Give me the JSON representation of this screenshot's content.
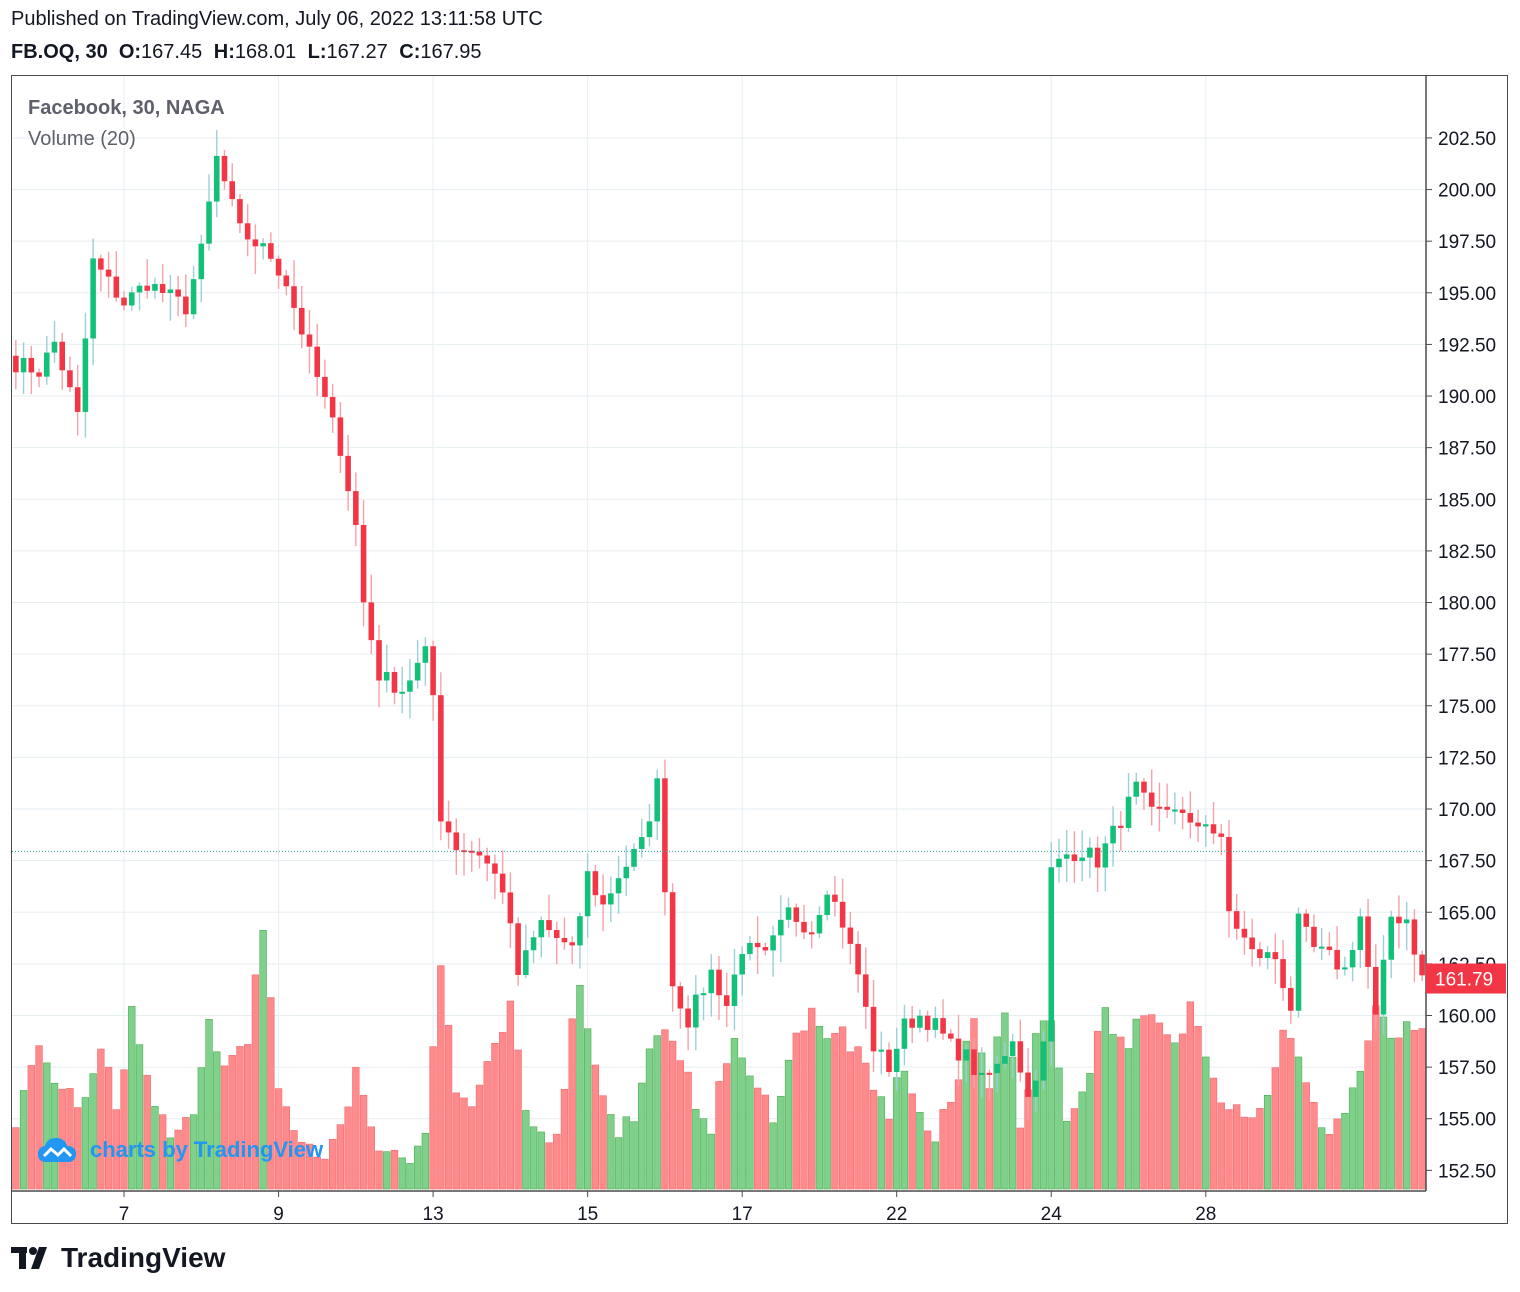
{
  "header": {
    "published": "Published on TradingView.com, July 06, 2022 13:11:58 UTC",
    "symbol": "FB.OQ, 30",
    "o_label": "O:",
    "o_value": "167.45",
    "h_label": "H:",
    "h_value": "168.01",
    "l_label": "L:",
    "l_value": "167.27",
    "c_label": "C:",
    "c_value": "167.95"
  },
  "legend": {
    "title": "Facebook, 30, NAGA",
    "volume": "Volume (20)"
  },
  "watermark": "charts by TradingView",
  "footer": {
    "brand": "TradingView"
  },
  "colors": {
    "up": "#26a69a",
    "up_body": "#12c07a",
    "down": "#f23645",
    "vol_up": "#7ed08a",
    "vol_down": "#ff8a8c",
    "grid": "#e6eef2",
    "last_price_bg": "#f23645"
  },
  "chart_data": {
    "type": "candlestick",
    "title": "Facebook, 30, NAGA",
    "ylim": [
      151.5,
      205.5
    ],
    "y_ticks": [
      "202.50",
      "200.00",
      "197.50",
      "195.00",
      "192.50",
      "190.00",
      "187.50",
      "185.00",
      "182.50",
      "180.00",
      "177.50",
      "175.00",
      "172.50",
      "170.00",
      "167.50",
      "165.00",
      "162.50",
      "160.00",
      "157.50",
      "155.00",
      "152.50"
    ],
    "x_ticks": [
      "7",
      "9",
      "13",
      "15",
      "17",
      "22",
      "24",
      "28"
    ],
    "x_tick_index": [
      14,
      34,
      54,
      74,
      94,
      114,
      134,
      154
    ],
    "last_price": "161.79",
    "last_price_value": 161.79,
    "dotted_line_value": 167.95,
    "segments": [
      {
        "start": 0,
        "anchors": [
          [
            0,
            191.6
          ],
          [
            3,
            191.2
          ],
          [
            5,
            192.6
          ],
          [
            8,
            189.0
          ],
          [
            10,
            196.5
          ],
          [
            14,
            194.5
          ],
          [
            17,
            195.5
          ],
          [
            22,
            194.3
          ],
          [
            24,
            197.0
          ],
          [
            26,
            201.5
          ],
          [
            29,
            198.0
          ],
          [
            33,
            196.8
          ],
          [
            35,
            195.5
          ],
          [
            38,
            192.0
          ],
          [
            42,
            187.5
          ],
          [
            44,
            183.7
          ],
          [
            45,
            180.0
          ],
          [
            47,
            176.5
          ],
          [
            50,
            175.8
          ],
          [
            53,
            177.5
          ],
          [
            54,
            175.5
          ]
        ]
      },
      {
        "start": 55,
        "anchors": [
          [
            55,
            169.7
          ],
          [
            57,
            168.2
          ],
          [
            60,
            167.9
          ],
          [
            63,
            166.2
          ],
          [
            65,
            162.0
          ],
          [
            68,
            164.5
          ],
          [
            72,
            163.0
          ],
          [
            74,
            166.8
          ],
          [
            76,
            165.3
          ],
          [
            78,
            166.8
          ],
          [
            81,
            168.3
          ],
          [
            83,
            171.2
          ],
          [
            85,
            161.5
          ],
          [
            87,
            159.8
          ],
          [
            90,
            162.1
          ],
          [
            92,
            160.5
          ],
          [
            94,
            163.3
          ],
          [
            97,
            162.8
          ],
          [
            100,
            165.0
          ],
          [
            103,
            164.2
          ],
          [
            105,
            166.3
          ],
          [
            107,
            164.5
          ],
          [
            109,
            162.0
          ],
          [
            111,
            158.5
          ],
          [
            113,
            157.5
          ],
          [
            115,
            159.5
          ],
          [
            117,
            160.0
          ],
          [
            119,
            159.5
          ],
          [
            121,
            158.5
          ],
          [
            123,
            158.0
          ],
          [
            125,
            156.8
          ],
          [
            127,
            157.5
          ],
          [
            129,
            159.0
          ],
          [
            131,
            156.0
          ],
          [
            133,
            158.5
          ],
          [
            134,
            167.0
          ],
          [
            136,
            167.8
          ],
          [
            138,
            168.0
          ],
          [
            140,
            167.5
          ],
          [
            143,
            169.5
          ],
          [
            145,
            171.0
          ],
          [
            147,
            169.7
          ],
          [
            150,
            170.2
          ],
          [
            152,
            169.0
          ],
          [
            154,
            169.5
          ],
          [
            156,
            168.3
          ],
          [
            157,
            165.0
          ],
          [
            160,
            163.0
          ],
          [
            163,
            162.8
          ],
          [
            165,
            160.4
          ],
          [
            166,
            164.5
          ],
          [
            168,
            163.2
          ],
          [
            170,
            162.8
          ],
          [
            172,
            162.2
          ],
          [
            174,
            164.8
          ],
          [
            176,
            159.8
          ],
          [
            178,
            164.8
          ],
          [
            180,
            164.7
          ],
          [
            182,
            161.8
          ]
        ]
      }
    ],
    "volume_anchors": [
      [
        0,
        0.22
      ],
      [
        3,
        0.46
      ],
      [
        6,
        0.33
      ],
      [
        9,
        0.28
      ],
      [
        11,
        0.46
      ],
      [
        13,
        0.28
      ],
      [
        15,
        0.59
      ],
      [
        18,
        0.26
      ],
      [
        21,
        0.18
      ],
      [
        23,
        0.22
      ],
      [
        25,
        0.56
      ],
      [
        27,
        0.4
      ],
      [
        30,
        0.52
      ],
      [
        32,
        0.85
      ],
      [
        34,
        0.35
      ],
      [
        36,
        0.16
      ],
      [
        40,
        0.12
      ],
      [
        42,
        0.22
      ],
      [
        44,
        0.4
      ],
      [
        46,
        0.18
      ],
      [
        49,
        0.12
      ],
      [
        51,
        0.1
      ],
      [
        53,
        0.22
      ],
      [
        55,
        0.75
      ],
      [
        57,
        0.32
      ],
      [
        59,
        0.28
      ],
      [
        62,
        0.45
      ],
      [
        64,
        0.6
      ],
      [
        66,
        0.25
      ],
      [
        68,
        0.18
      ],
      [
        70,
        0.2
      ],
      [
        73,
        0.71
      ],
      [
        75,
        0.4
      ],
      [
        78,
        0.2
      ],
      [
        80,
        0.24
      ],
      [
        83,
        0.55
      ],
      [
        85,
        0.46
      ],
      [
        88,
        0.3
      ],
      [
        90,
        0.22
      ],
      [
        93,
        0.52
      ],
      [
        95,
        0.35
      ],
      [
        98,
        0.26
      ],
      [
        101,
        0.5
      ],
      [
        103,
        0.62
      ],
      [
        105,
        0.48
      ],
      [
        107,
        0.53
      ],
      [
        109,
        0.44
      ],
      [
        111,
        0.32
      ],
      [
        113,
        0.26
      ],
      [
        115,
        0.42
      ],
      [
        117,
        0.24
      ],
      [
        119,
        0.16
      ],
      [
        122,
        0.36
      ],
      [
        124,
        0.6
      ],
      [
        126,
        0.36
      ],
      [
        128,
        0.6
      ],
      [
        130,
        0.2
      ],
      [
        132,
        0.52
      ],
      [
        134,
        0.6
      ],
      [
        136,
        0.2
      ],
      [
        139,
        0.42
      ],
      [
        141,
        0.61
      ],
      [
        143,
        0.48
      ],
      [
        146,
        0.56
      ],
      [
        148,
        0.54
      ],
      [
        150,
        0.46
      ],
      [
        152,
        0.61
      ],
      [
        154,
        0.48
      ],
      [
        156,
        0.32
      ],
      [
        158,
        0.28
      ],
      [
        160,
        0.26
      ],
      [
        162,
        0.3
      ],
      [
        164,
        0.55
      ],
      [
        166,
        0.42
      ],
      [
        168,
        0.26
      ],
      [
        170,
        0.2
      ],
      [
        172,
        0.26
      ],
      [
        174,
        0.4
      ],
      [
        176,
        0.58
      ],
      [
        178,
        0.51
      ],
      [
        180,
        0.52
      ],
      [
        182,
        0.5
      ]
    ]
  }
}
